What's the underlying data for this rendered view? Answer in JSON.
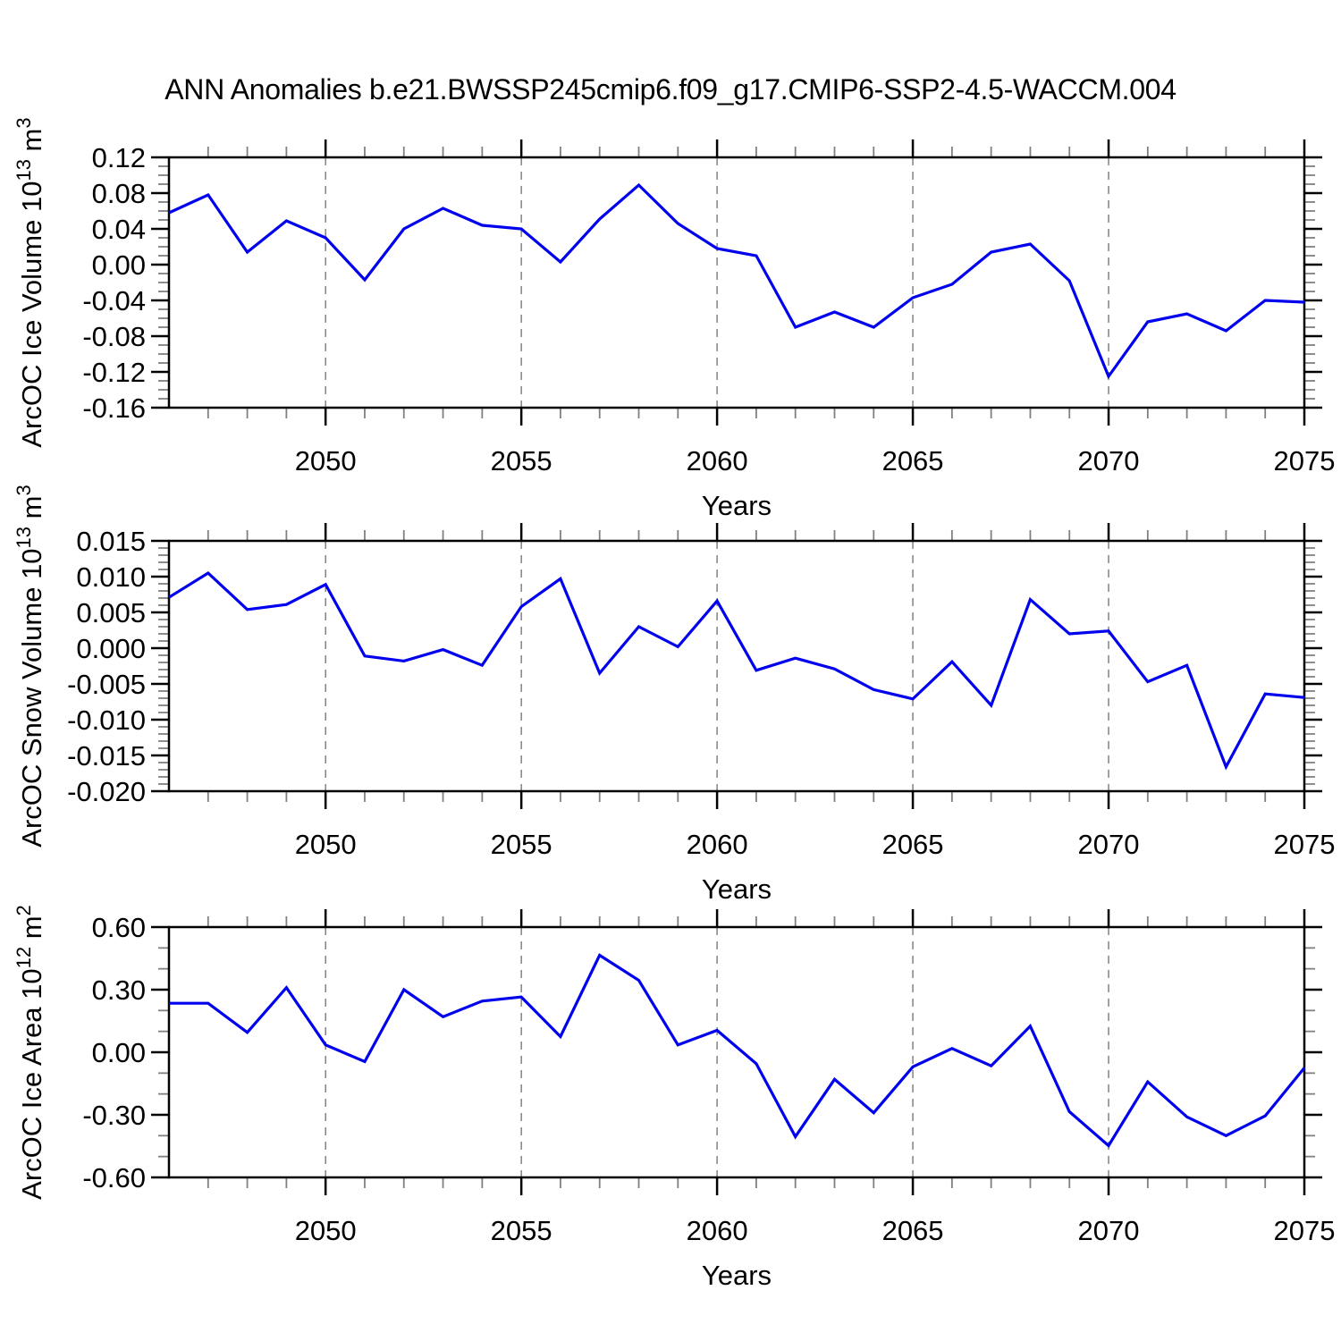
{
  "title": "ANN Anomalies b.e21.BWSSP245cmip6.f09_g17.CMIP6-SSP2-4.5-WACCM.004",
  "colors": {
    "background": "#ffffff",
    "line": "#0000EE",
    "frame": "#000000",
    "major_tick": "#000000",
    "minor_tick": "#808080",
    "grid_dashed": "#707070",
    "text": "#000000"
  },
  "chart_data": [
    {
      "type": "line",
      "ylabel_parts": {
        "name": "ArcOC Ice Volume",
        "scale_base": "10",
        "scale_exp": "13",
        "unit": "m",
        "unit_exp": "3"
      },
      "xlabel": "Years",
      "xlim": [
        2046,
        2075
      ],
      "ylim": [
        -0.16,
        0.12
      ],
      "grid": "vertical-dashed-at-major-xticks",
      "legend": "none",
      "xticks": [
        {
          "v": 2050,
          "label": "2050"
        },
        {
          "v": 2055,
          "label": "2055"
        },
        {
          "v": 2060,
          "label": "2060"
        },
        {
          "v": 2065,
          "label": "2065"
        },
        {
          "v": 2070,
          "label": "2070"
        },
        {
          "v": 2075,
          "label": "2075"
        }
      ],
      "xtick_minor_step": 1,
      "yticks": [
        {
          "v": 0.12,
          "label": "0.12"
        },
        {
          "v": 0.08,
          "label": "0.08"
        },
        {
          "v": 0.04,
          "label": "0.04"
        },
        {
          "v": 0.0,
          "label": "0.00"
        },
        {
          "v": -0.04,
          "label": "-0.04"
        },
        {
          "v": -0.08,
          "label": "-0.08"
        },
        {
          "v": -0.12,
          "label": "-0.12"
        },
        {
          "v": -0.16,
          "label": "-0.16"
        }
      ],
      "ytick_minor_step": 0.01,
      "x": [
        2046,
        2047,
        2048,
        2049,
        2050,
        2051,
        2052,
        2053,
        2054,
        2055,
        2056,
        2057,
        2058,
        2059,
        2060,
        2061,
        2062,
        2063,
        2064,
        2065,
        2066,
        2067,
        2068,
        2069,
        2070,
        2071,
        2072,
        2073,
        2074,
        2075
      ],
      "values": [
        0.058,
        0.078,
        0.014,
        0.049,
        0.03,
        -0.017,
        0.04,
        0.063,
        0.044,
        0.04,
        0.003,
        0.051,
        0.089,
        0.046,
        0.018,
        0.01,
        -0.07,
        -0.053,
        -0.07,
        -0.037,
        -0.022,
        0.014,
        0.023,
        -0.018,
        -0.125,
        -0.064,
        -0.055,
        -0.074,
        -0.04,
        -0.042
      ]
    },
    {
      "type": "line",
      "ylabel_parts": {
        "name": "ArcOC Snow Volume",
        "scale_base": "10",
        "scale_exp": "13",
        "unit": "m",
        "unit_exp": "3"
      },
      "xlabel": "Years",
      "xlim": [
        2046,
        2075
      ],
      "ylim": [
        -0.02,
        0.015
      ],
      "grid": "vertical-dashed-at-major-xticks",
      "legend": "none",
      "xticks": [
        {
          "v": 2050,
          "label": "2050"
        },
        {
          "v": 2055,
          "label": "2055"
        },
        {
          "v": 2060,
          "label": "2060"
        },
        {
          "v": 2065,
          "label": "2065"
        },
        {
          "v": 2070,
          "label": "2070"
        },
        {
          "v": 2075,
          "label": "2075"
        }
      ],
      "xtick_minor_step": 1,
      "yticks": [
        {
          "v": 0.015,
          "label": "0.015"
        },
        {
          "v": 0.01,
          "label": "0.010"
        },
        {
          "v": 0.005,
          "label": "0.005"
        },
        {
          "v": 0.0,
          "label": "0.000"
        },
        {
          "v": -0.005,
          "label": "-0.005"
        },
        {
          "v": -0.01,
          "label": "-0.010"
        },
        {
          "v": -0.015,
          "label": "-0.015"
        },
        {
          "v": -0.02,
          "label": "-0.020"
        }
      ],
      "ytick_minor_step": 0.001,
      "x": [
        2046,
        2047,
        2048,
        2049,
        2050,
        2051,
        2052,
        2053,
        2054,
        2055,
        2056,
        2057,
        2058,
        2059,
        2060,
        2061,
        2062,
        2063,
        2064,
        2065,
        2066,
        2067,
        2068,
        2069,
        2070,
        2071,
        2072,
        2073,
        2074,
        2075
      ],
      "values": [
        0.0071,
        0.0105,
        0.0054,
        0.0061,
        0.0089,
        -0.0011,
        -0.0018,
        -0.0002,
        -0.0024,
        0.0058,
        0.0097,
        -0.0035,
        0.003,
        0.0002,
        0.0066,
        -0.0031,
        -0.0014,
        -0.0029,
        -0.0058,
        -0.0071,
        -0.0019,
        -0.008,
        0.0068,
        0.002,
        0.0024,
        -0.0047,
        -0.0024,
        -0.0166,
        -0.0064,
        -0.0069
      ]
    },
    {
      "type": "line",
      "ylabel_parts": {
        "name": "ArcOC Ice Area",
        "scale_base": "10",
        "scale_exp": "12",
        "unit": "m",
        "unit_exp": "2"
      },
      "xlabel": "Years",
      "xlim": [
        2046,
        2075
      ],
      "ylim": [
        -0.6,
        0.6
      ],
      "grid": "vertical-dashed-at-major-xticks",
      "legend": "none",
      "xticks": [
        {
          "v": 2050,
          "label": "2050"
        },
        {
          "v": 2055,
          "label": "2055"
        },
        {
          "v": 2060,
          "label": "2060"
        },
        {
          "v": 2065,
          "label": "2065"
        },
        {
          "v": 2070,
          "label": "2070"
        },
        {
          "v": 2075,
          "label": "2075"
        }
      ],
      "xtick_minor_step": 1,
      "yticks": [
        {
          "v": 0.6,
          "label": "0.60"
        },
        {
          "v": 0.3,
          "label": "0.30"
        },
        {
          "v": 0.0,
          "label": "0.00"
        },
        {
          "v": -0.3,
          "label": "-0.30"
        },
        {
          "v": -0.6,
          "label": "-0.60"
        }
      ],
      "ytick_minor_step": 0.1,
      "x": [
        2046,
        2047,
        2048,
        2049,
        2050,
        2051,
        2052,
        2053,
        2054,
        2055,
        2056,
        2057,
        2058,
        2059,
        2060,
        2061,
        2062,
        2063,
        2064,
        2065,
        2066,
        2067,
        2068,
        2069,
        2070,
        2071,
        2072,
        2073,
        2074,
        2075
      ],
      "values": [
        0.235,
        0.235,
        0.095,
        0.31,
        0.035,
        -0.045,
        0.3,
        0.17,
        0.245,
        0.265,
        0.075,
        0.465,
        0.345,
        0.035,
        0.105,
        -0.055,
        -0.405,
        -0.13,
        -0.29,
        -0.07,
        0.018,
        -0.065,
        0.125,
        -0.285,
        -0.448,
        -0.142,
        -0.31,
        -0.4,
        -0.305,
        -0.075
      ]
    }
  ]
}
